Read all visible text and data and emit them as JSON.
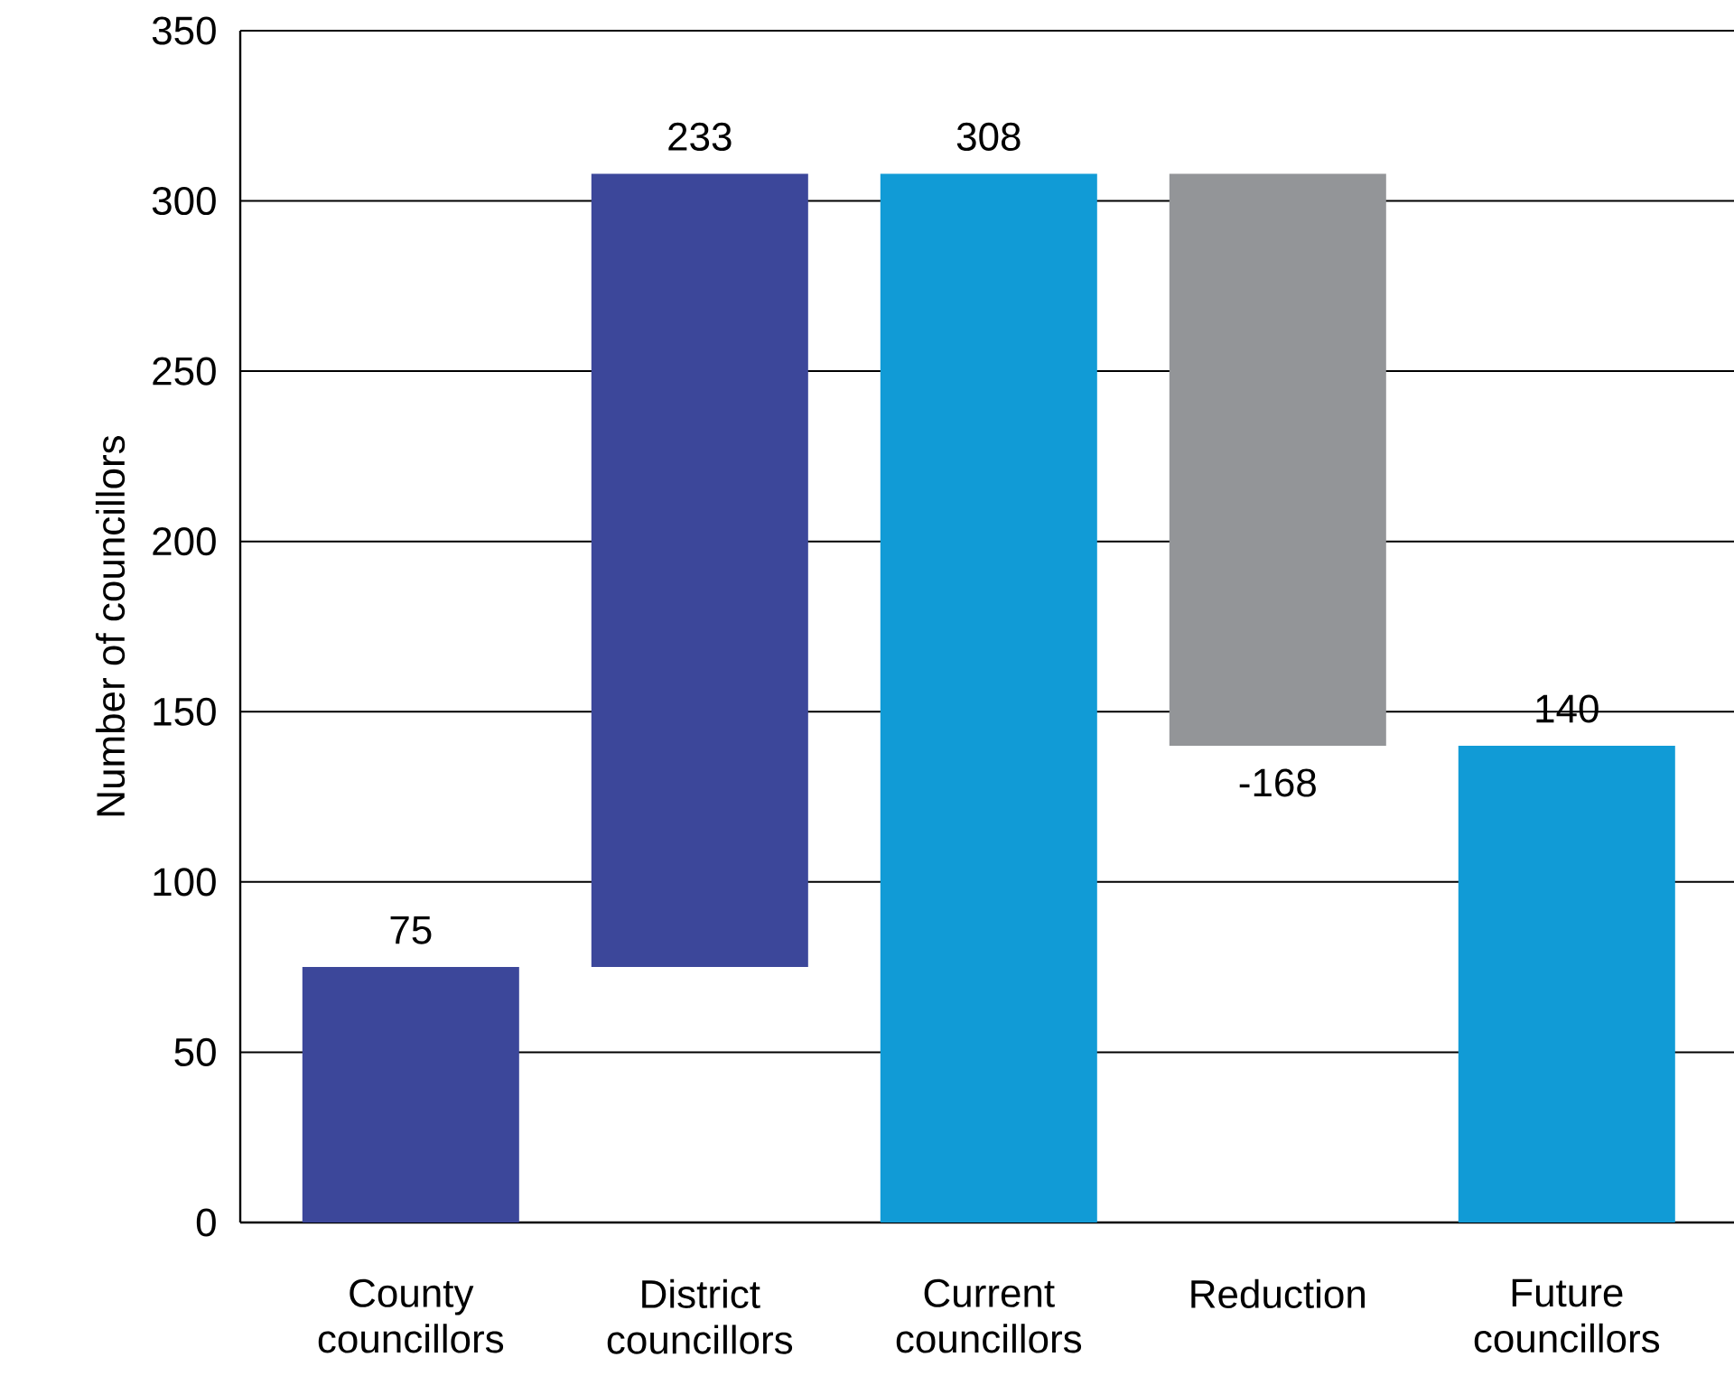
{
  "chart_data": {
    "type": "bar",
    "ylabel": "Number of councillors",
    "categories": [
      "County councillors",
      "District councillors",
      "Current councillors",
      "Reduction",
      "Future councillors"
    ],
    "values": [
      75,
      233,
      308,
      -168,
      140
    ],
    "base": [
      0,
      75,
      0,
      308,
      0
    ],
    "colors": [
      "#3c479a",
      "#3c479a",
      "#119bd6",
      "#939598",
      "#119bd6"
    ],
    "ylim": [
      0,
      350
    ],
    "yticks": [
      0,
      50,
      100,
      150,
      200,
      250,
      300,
      350
    ],
    "grid": "y",
    "data_labels": true
  }
}
